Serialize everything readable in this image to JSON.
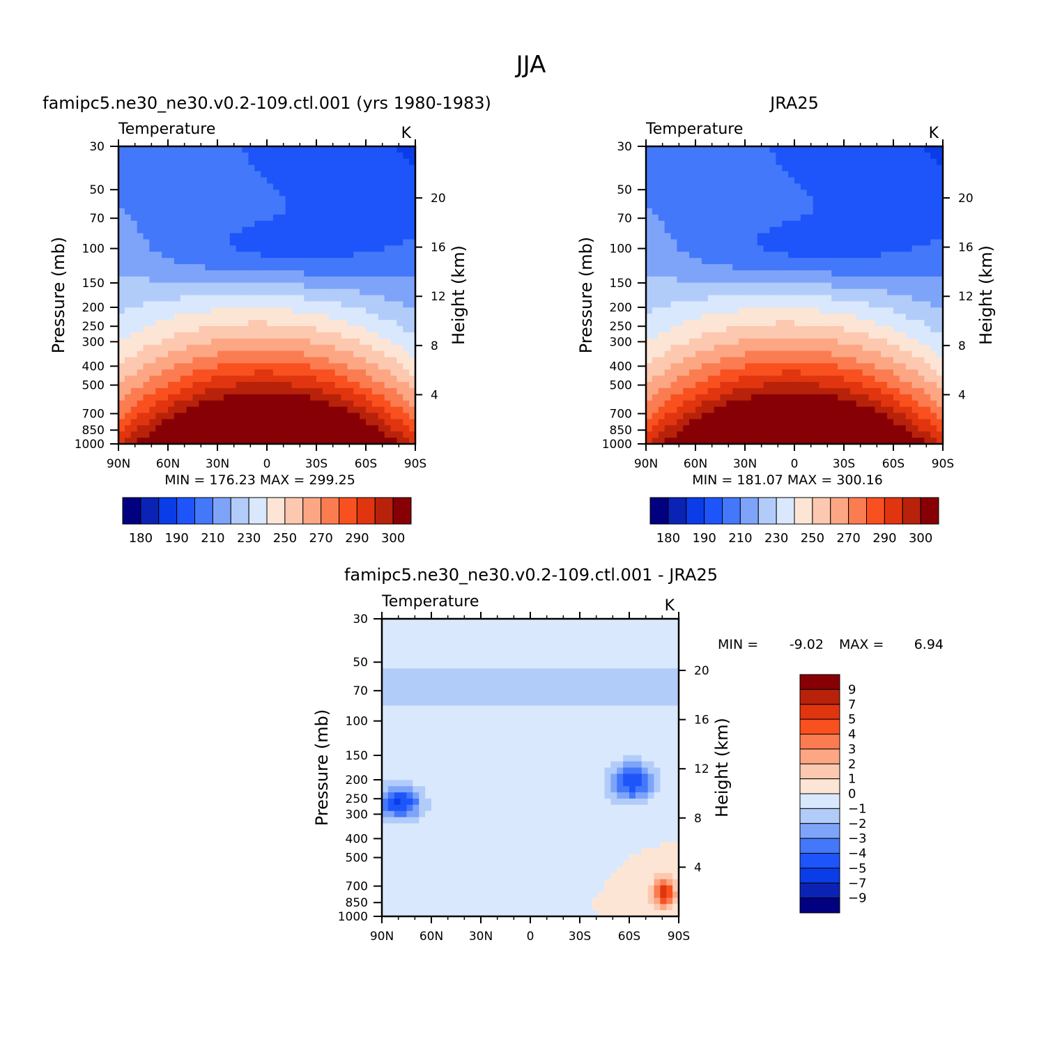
{
  "figure": {
    "title": "JJA"
  },
  "chart_data": [
    {
      "type": "contour",
      "title": "famipc5.ne30_ne30.v0.2-109.ctl.001 (yrs 1980-1983)",
      "left_label": "Temperature",
      "units_label": "K",
      "ylabel": "Pressure (mb)",
      "ylabel_right": "Height (km)",
      "x_ticks": [
        "90N",
        "60N",
        "30N",
        "0",
        "30S",
        "60S",
        "90S"
      ],
      "y_ticks": [
        "30",
        "50",
        "70",
        "100",
        "150",
        "200",
        "250",
        "300",
        "400",
        "500",
        "700",
        "850",
        "1000"
      ],
      "y_right_ticks": [
        "20",
        "16",
        "12",
        "8",
        "4"
      ],
      "y_log_scale": true,
      "ylim": [
        1000,
        30
      ],
      "stats": "MIN = 176.23   MAX = 299.25",
      "colorbar": {
        "orientation": "horizontal",
        "colors": [
          "#000080",
          "#0a23b5",
          "#0a3de8",
          "#1e55fa",
          "#4478fa",
          "#7ea4fa",
          "#b2ccfa",
          "#d9e8fc",
          "#fde5d6",
          "#fdc8b0",
          "#fca683",
          "#fb7c51",
          "#f9501f",
          "#e0350f",
          "#b8220a",
          "#870005"
        ],
        "tick_labels": [
          "180",
          "190",
          "210",
          "230",
          "250",
          "270",
          "290",
          "300"
        ]
      }
    },
    {
      "type": "contour",
      "title": "JRA25",
      "left_label": "Temperature",
      "units_label": "K",
      "ylabel": "Pressure (mb)",
      "ylabel_right": "Height (km)",
      "x_ticks": [
        "90N",
        "60N",
        "30N",
        "0",
        "30S",
        "60S",
        "90S"
      ],
      "y_ticks": [
        "30",
        "50",
        "70",
        "100",
        "150",
        "200",
        "250",
        "300",
        "400",
        "500",
        "700",
        "850",
        "1000"
      ],
      "y_right_ticks": [
        "20",
        "16",
        "12",
        "8",
        "4"
      ],
      "y_log_scale": true,
      "ylim": [
        1000,
        30
      ],
      "stats": "MIN = 181.07   MAX = 300.16",
      "colorbar": {
        "orientation": "horizontal",
        "colors": [
          "#000080",
          "#0a23b5",
          "#0a3de8",
          "#1e55fa",
          "#4478fa",
          "#7ea4fa",
          "#b2ccfa",
          "#d9e8fc",
          "#fde5d6",
          "#fdc8b0",
          "#fca683",
          "#fb7c51",
          "#f9501f",
          "#e0350f",
          "#b8220a",
          "#870005"
        ],
        "tick_labels": [
          "180",
          "190",
          "210",
          "230",
          "250",
          "270",
          "290",
          "300"
        ]
      }
    },
    {
      "type": "contour",
      "title": "famipc5.ne30_ne30.v0.2-109.ctl.001 - JRA25",
      "left_label": "Temperature",
      "units_label": "K",
      "ylabel": "Pressure (mb)",
      "ylabel_right": "Height (km)",
      "x_ticks": [
        "90N",
        "60N",
        "30N",
        "0",
        "30S",
        "60S",
        "90S"
      ],
      "y_ticks": [
        "30",
        "50",
        "70",
        "100",
        "150",
        "200",
        "250",
        "300",
        "400",
        "500",
        "700",
        "850",
        "1000"
      ],
      "y_right_ticks": [
        "20",
        "16",
        "12",
        "8",
        "4"
      ],
      "y_log_scale": true,
      "ylim": [
        1000,
        30
      ],
      "stats_min_label": "MIN =",
      "stats_min_value": "-9.02",
      "stats_max_label": "MAX =",
      "stats_max_value": "6.94",
      "colorbar": {
        "orientation": "vertical",
        "colors": [
          "#870005",
          "#b8220a",
          "#e0350f",
          "#f9501f",
          "#fb7c51",
          "#fca683",
          "#fdc8b0",
          "#fde5d6",
          "#d9e8fc",
          "#b2ccfa",
          "#7ea4fa",
          "#4478fa",
          "#1e55fa",
          "#0a3de8",
          "#0a23b5",
          "#000080"
        ],
        "tick_labels": [
          "9",
          "7",
          "5",
          "4",
          "3",
          "2",
          "1",
          "0",
          "−1",
          "−2",
          "−3",
          "−4",
          "−5",
          "−7",
          "−9"
        ]
      }
    }
  ]
}
